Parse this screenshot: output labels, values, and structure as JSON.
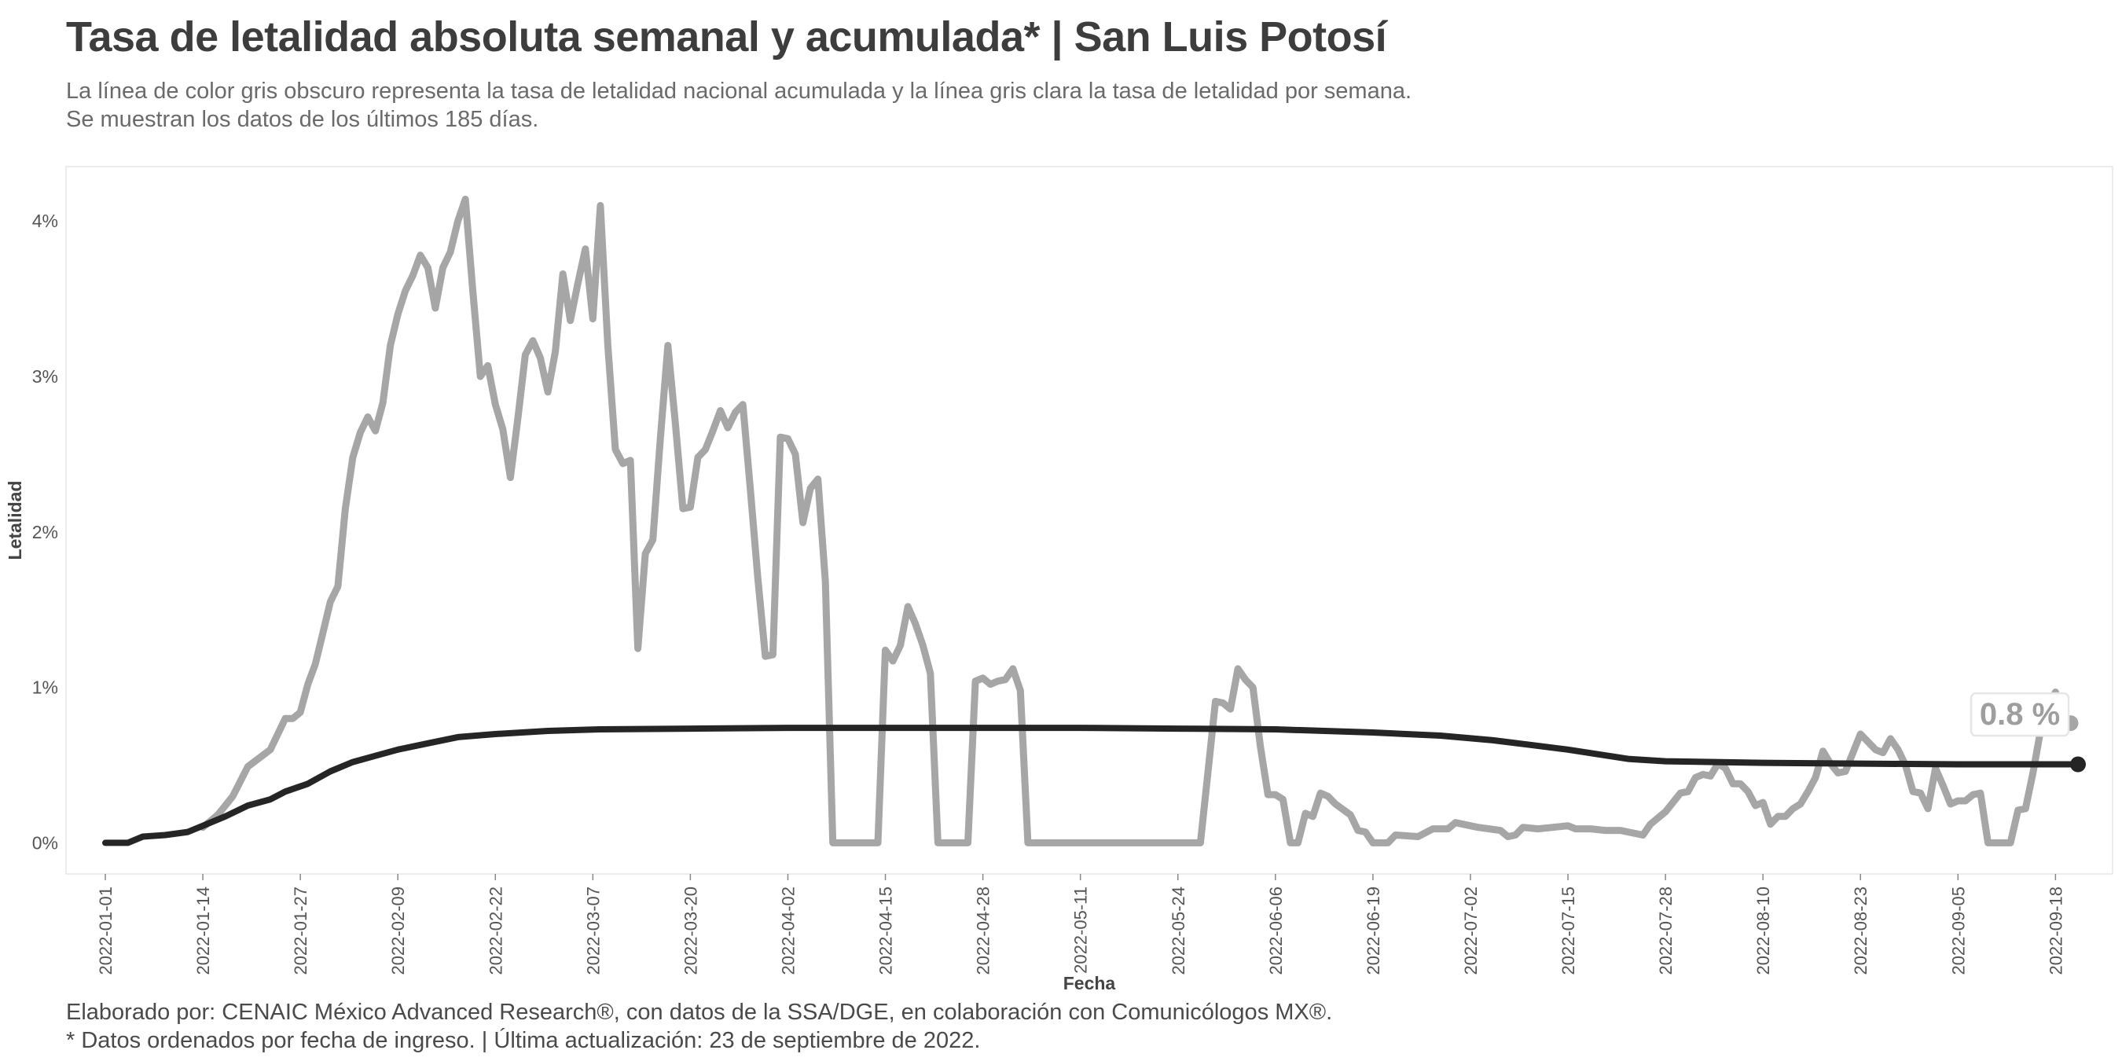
{
  "header": {
    "title": "Tasa de letalidad absoluta semanal y acumulada* | San Luis Potosí",
    "subtitle_line1": "La línea de color gris obscuro representa la tasa de letalidad nacional acumulada y la línea gris clara la tasa de letalidad por semana.",
    "subtitle_line2": "Se muestran los datos de los últimos 185 días."
  },
  "caption": {
    "line1": "Elaborado por: CENAIC México Advanced Research®, con datos de la SSA/DGE, en colaboración con Comunicólogos MX®.",
    "line2": "* Datos ordenados por fecha de ingreso. | Última actualización: 23 de septiembre de 2022."
  },
  "colors": {
    "weekly_line": "#a6a6a6",
    "cumulative_line": "#252525",
    "panel_border": "#e6e6e6",
    "end_label_fill": "#ffffff",
    "end_label_text": "#9e9e9e"
  },
  "chart_data": {
    "type": "line",
    "xlabel": "Fecha",
    "ylabel": "Letalidad",
    "start_date": "2022-01-01",
    "end_date": "2022-09-21",
    "ylim": [
      -0.2,
      4.35
    ],
    "yticks": [
      0,
      1,
      2,
      3,
      4
    ],
    "ytick_labels": [
      "0%",
      "1%",
      "2%",
      "3%",
      "4%"
    ],
    "xticks": [
      "2022-01-01",
      "2022-01-14",
      "2022-01-27",
      "2022-02-09",
      "2022-02-22",
      "2022-03-07",
      "2022-03-20",
      "2022-04-02",
      "2022-04-15",
      "2022-04-28",
      "2022-05-11",
      "2022-05-24",
      "2022-06-06",
      "2022-06-19",
      "2022-07-02",
      "2022-07-15",
      "2022-07-28",
      "2022-08-10",
      "2022-08-23",
      "2022-09-05",
      "2022-09-18"
    ],
    "grid": false,
    "end_label": "0.8 %",
    "end_label_value": 0.77,
    "series": [
      {
        "role": "weekly",
        "points": [
          [
            "2022-01-14",
            0.1
          ],
          [
            "2022-01-16",
            0.18
          ],
          [
            "2022-01-18",
            0.3
          ],
          [
            "2022-01-20",
            0.49
          ],
          [
            "2022-01-23",
            0.6
          ],
          [
            "2022-01-25",
            0.8
          ],
          [
            "2022-01-26",
            0.8
          ],
          [
            "2022-01-27",
            0.84
          ],
          [
            "2022-01-28",
            1.02
          ],
          [
            "2022-01-29",
            1.15
          ],
          [
            "2022-01-30",
            1.35
          ],
          [
            "2022-01-31",
            1.55
          ],
          [
            "2022-02-01",
            1.65
          ],
          [
            "2022-02-02",
            2.15
          ],
          [
            "2022-02-03",
            2.48
          ],
          [
            "2022-02-04",
            2.64
          ],
          [
            "2022-02-05",
            2.74
          ],
          [
            "2022-02-06",
            2.65
          ],
          [
            "2022-02-07",
            2.83
          ],
          [
            "2022-02-08",
            3.2
          ],
          [
            "2022-02-09",
            3.4
          ],
          [
            "2022-02-10",
            3.55
          ],
          [
            "2022-02-11",
            3.65
          ],
          [
            "2022-02-12",
            3.78
          ],
          [
            "2022-02-13",
            3.7
          ],
          [
            "2022-02-14",
            3.44
          ],
          [
            "2022-02-15",
            3.7
          ],
          [
            "2022-02-16",
            3.8
          ],
          [
            "2022-02-17",
            4.0
          ],
          [
            "2022-02-18",
            4.14
          ],
          [
            "2022-02-19",
            3.55
          ],
          [
            "2022-02-20",
            3.0
          ],
          [
            "2022-02-21",
            3.07
          ],
          [
            "2022-02-22",
            2.82
          ],
          [
            "2022-02-23",
            2.66
          ],
          [
            "2022-02-24",
            2.35
          ],
          [
            "2022-02-25",
            2.73
          ],
          [
            "2022-02-26",
            3.14
          ],
          [
            "2022-02-27",
            3.23
          ],
          [
            "2022-02-28",
            3.12
          ],
          [
            "2022-03-01",
            2.9
          ],
          [
            "2022-03-02",
            3.16
          ],
          [
            "2022-03-03",
            3.66
          ],
          [
            "2022-03-04",
            3.36
          ],
          [
            "2022-03-05",
            3.6
          ],
          [
            "2022-03-06",
            3.82
          ],
          [
            "2022-03-07",
            3.37
          ],
          [
            "2022-03-08",
            4.1
          ],
          [
            "2022-03-09",
            3.2
          ],
          [
            "2022-03-10",
            2.53
          ],
          [
            "2022-03-11",
            2.44
          ],
          [
            "2022-03-12",
            2.46
          ],
          [
            "2022-03-13",
            1.25
          ],
          [
            "2022-03-14",
            1.86
          ],
          [
            "2022-03-15",
            1.95
          ],
          [
            "2022-03-16",
            2.6
          ],
          [
            "2022-03-17",
            3.2
          ],
          [
            "2022-03-18",
            2.7
          ],
          [
            "2022-03-19",
            2.15
          ],
          [
            "2022-03-20",
            2.16
          ],
          [
            "2022-03-21",
            2.48
          ],
          [
            "2022-03-22",
            2.53
          ],
          [
            "2022-03-23",
            2.65
          ],
          [
            "2022-03-24",
            2.78
          ],
          [
            "2022-03-25",
            2.67
          ],
          [
            "2022-03-26",
            2.77
          ],
          [
            "2022-03-27",
            2.82
          ],
          [
            "2022-03-28",
            2.27
          ],
          [
            "2022-03-29",
            1.7
          ],
          [
            "2022-03-30",
            1.2
          ],
          [
            "2022-03-31",
            1.21
          ],
          [
            "2022-04-01",
            2.61
          ],
          [
            "2022-04-02",
            2.6
          ],
          [
            "2022-04-03",
            2.5
          ],
          [
            "2022-04-04",
            2.06
          ],
          [
            "2022-04-05",
            2.28
          ],
          [
            "2022-04-06",
            2.34
          ],
          [
            "2022-04-07",
            1.68
          ],
          [
            "2022-04-08",
            0.0
          ],
          [
            "2022-04-14",
            0.0
          ],
          [
            "2022-04-15",
            1.24
          ],
          [
            "2022-04-16",
            1.17
          ],
          [
            "2022-04-17",
            1.27
          ],
          [
            "2022-04-18",
            1.52
          ],
          [
            "2022-04-19",
            1.41
          ],
          [
            "2022-04-20",
            1.27
          ],
          [
            "2022-04-21",
            1.09
          ],
          [
            "2022-04-22",
            0.0
          ],
          [
            "2022-04-26",
            0.0
          ],
          [
            "2022-04-27",
            1.04
          ],
          [
            "2022-04-28",
            1.06
          ],
          [
            "2022-04-29",
            1.02
          ],
          [
            "2022-04-30",
            1.04
          ],
          [
            "2022-05-01",
            1.05
          ],
          [
            "2022-05-02",
            1.12
          ],
          [
            "2022-05-03",
            0.98
          ],
          [
            "2022-05-04",
            0.0
          ],
          [
            "2022-05-27",
            0.0
          ],
          [
            "2022-05-28",
            0.45
          ],
          [
            "2022-05-29",
            0.91
          ],
          [
            "2022-05-30",
            0.9
          ],
          [
            "2022-05-31",
            0.86
          ],
          [
            "2022-06-01",
            1.12
          ],
          [
            "2022-06-02",
            1.05
          ],
          [
            "2022-06-03",
            1.0
          ],
          [
            "2022-06-04",
            0.62
          ],
          [
            "2022-06-05",
            0.31
          ],
          [
            "2022-06-06",
            0.31
          ],
          [
            "2022-06-07",
            0.28
          ],
          [
            "2022-06-08",
            0.0
          ],
          [
            "2022-06-09",
            0.0
          ],
          [
            "2022-06-10",
            0.19
          ],
          [
            "2022-06-11",
            0.17
          ],
          [
            "2022-06-12",
            0.32
          ],
          [
            "2022-06-13",
            0.3
          ],
          [
            "2022-06-14",
            0.25
          ],
          [
            "2022-06-16",
            0.18
          ],
          [
            "2022-06-17",
            0.08
          ],
          [
            "2022-06-18",
            0.07
          ],
          [
            "2022-06-19",
            0.0
          ],
          [
            "2022-06-21",
            0.0
          ],
          [
            "2022-06-22",
            0.05
          ],
          [
            "2022-06-25",
            0.04
          ],
          [
            "2022-06-27",
            0.09
          ],
          [
            "2022-06-29",
            0.09
          ],
          [
            "2022-06-30",
            0.13
          ],
          [
            "2022-07-01",
            0.12
          ],
          [
            "2022-07-03",
            0.1
          ],
          [
            "2022-07-06",
            0.08
          ],
          [
            "2022-07-07",
            0.04
          ],
          [
            "2022-07-08",
            0.05
          ],
          [
            "2022-07-09",
            0.1
          ],
          [
            "2022-07-11",
            0.09
          ],
          [
            "2022-07-13",
            0.1
          ],
          [
            "2022-07-15",
            0.11
          ],
          [
            "2022-07-16",
            0.09
          ],
          [
            "2022-07-18",
            0.09
          ],
          [
            "2022-07-20",
            0.08
          ],
          [
            "2022-07-22",
            0.08
          ],
          [
            "2022-07-25",
            0.05
          ],
          [
            "2022-07-26",
            0.12
          ],
          [
            "2022-07-28",
            0.2
          ],
          [
            "2022-07-30",
            0.32
          ],
          [
            "2022-07-31",
            0.33
          ],
          [
            "2022-08-01",
            0.42
          ],
          [
            "2022-08-02",
            0.44
          ],
          [
            "2022-08-03",
            0.43
          ],
          [
            "2022-08-04",
            0.51
          ],
          [
            "2022-08-05",
            0.48
          ],
          [
            "2022-08-06",
            0.38
          ],
          [
            "2022-08-07",
            0.38
          ],
          [
            "2022-08-08",
            0.33
          ],
          [
            "2022-08-09",
            0.24
          ],
          [
            "2022-08-10",
            0.26
          ],
          [
            "2022-08-11",
            0.12
          ],
          [
            "2022-08-12",
            0.17
          ],
          [
            "2022-08-13",
            0.17
          ],
          [
            "2022-08-14",
            0.22
          ],
          [
            "2022-08-15",
            0.25
          ],
          [
            "2022-08-16",
            0.33
          ],
          [
            "2022-08-17",
            0.42
          ],
          [
            "2022-08-18",
            0.59
          ],
          [
            "2022-08-19",
            0.51
          ],
          [
            "2022-08-20",
            0.45
          ],
          [
            "2022-08-21",
            0.46
          ],
          [
            "2022-08-22",
            0.58
          ],
          [
            "2022-08-23",
            0.7
          ],
          [
            "2022-08-24",
            0.65
          ],
          [
            "2022-08-25",
            0.6
          ],
          [
            "2022-08-26",
            0.58
          ],
          [
            "2022-08-27",
            0.67
          ],
          [
            "2022-08-28",
            0.6
          ],
          [
            "2022-08-29",
            0.5
          ],
          [
            "2022-08-30",
            0.33
          ],
          [
            "2022-08-31",
            0.32
          ],
          [
            "2022-09-01",
            0.22
          ],
          [
            "2022-09-02",
            0.48
          ],
          [
            "2022-09-03",
            0.37
          ],
          [
            "2022-09-04",
            0.25
          ],
          [
            "2022-09-05",
            0.27
          ],
          [
            "2022-09-06",
            0.27
          ],
          [
            "2022-09-07",
            0.31
          ],
          [
            "2022-09-08",
            0.32
          ],
          [
            "2022-09-09",
            0.0
          ],
          [
            "2022-09-12",
            0.0
          ],
          [
            "2022-09-13",
            0.21
          ],
          [
            "2022-09-14",
            0.22
          ],
          [
            "2022-09-15",
            0.45
          ],
          [
            "2022-09-16",
            0.72
          ],
          [
            "2022-09-17",
            0.88
          ],
          [
            "2022-09-18",
            0.97
          ],
          [
            "2022-09-19",
            0.78
          ],
          [
            "2022-09-20",
            0.77
          ]
        ]
      },
      {
        "role": "cumulative",
        "points": [
          [
            "2022-01-01",
            0.0
          ],
          [
            "2022-01-04",
            0.0
          ],
          [
            "2022-01-06",
            0.04
          ],
          [
            "2022-01-09",
            0.05
          ],
          [
            "2022-01-12",
            0.07
          ],
          [
            "2022-01-14",
            0.11
          ],
          [
            "2022-01-17",
            0.17
          ],
          [
            "2022-01-20",
            0.24
          ],
          [
            "2022-01-23",
            0.28
          ],
          [
            "2022-01-25",
            0.33
          ],
          [
            "2022-01-28",
            0.38
          ],
          [
            "2022-01-31",
            0.46
          ],
          [
            "2022-02-03",
            0.52
          ],
          [
            "2022-02-06",
            0.56
          ],
          [
            "2022-02-09",
            0.6
          ],
          [
            "2022-02-13",
            0.64
          ],
          [
            "2022-02-17",
            0.68
          ],
          [
            "2022-02-22",
            0.7
          ],
          [
            "2022-03-01",
            0.72
          ],
          [
            "2022-03-08",
            0.73
          ],
          [
            "2022-03-20",
            0.735
          ],
          [
            "2022-04-02",
            0.74
          ],
          [
            "2022-04-15",
            0.74
          ],
          [
            "2022-05-11",
            0.74
          ],
          [
            "2022-05-24",
            0.735
          ],
          [
            "2022-06-06",
            0.73
          ],
          [
            "2022-06-19",
            0.71
          ],
          [
            "2022-06-28",
            0.69
          ],
          [
            "2022-07-05",
            0.66
          ],
          [
            "2022-07-10",
            0.63
          ],
          [
            "2022-07-15",
            0.6
          ],
          [
            "2022-07-19",
            0.57
          ],
          [
            "2022-07-23",
            0.54
          ],
          [
            "2022-07-28",
            0.525
          ],
          [
            "2022-08-10",
            0.515
          ],
          [
            "2022-08-23",
            0.51
          ],
          [
            "2022-09-05",
            0.505
          ],
          [
            "2022-09-21",
            0.505
          ]
        ]
      }
    ]
  }
}
